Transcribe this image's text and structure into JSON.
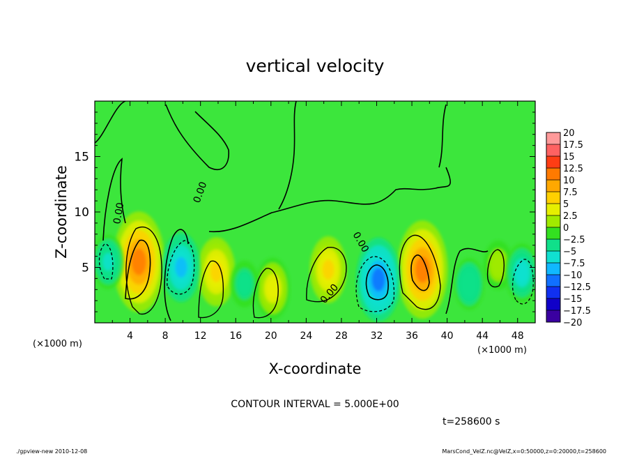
{
  "chart_data": {
    "type": "heatmap",
    "title": "vertical velocity",
    "xlabel": "X-coordinate",
    "ylabel": "Z-coordinate",
    "x_unit": "(×1000 m)",
    "y_unit": "(×1000 m)",
    "xlim": [
      0,
      50
    ],
    "ylim": [
      0,
      20
    ],
    "x_ticks": [
      "4",
      "8",
      "12",
      "16",
      "20",
      "24",
      "28",
      "32",
      "36",
      "40",
      "44",
      "48"
    ],
    "y_ticks": [
      "5",
      "10",
      "15"
    ],
    "colorbar": {
      "min": -20,
      "max": 20,
      "labels": [
        "20",
        "17.5",
        "15",
        "12.5",
        "10",
        "7.5",
        "5",
        "2.5",
        "0",
        "−2.5",
        "−5",
        "−7.5",
        "−10",
        "−12.5",
        "−15",
        "−17.5",
        "−20"
      ],
      "colors": [
        "#ff9a9a",
        "#ff6262",
        "#ff3d14",
        "#ff7a00",
        "#ffa800",
        "#ffd000",
        "#e6ef00",
        "#a0ea00",
        "#33e020",
        "#10e08a",
        "#10e0d0",
        "#10b8ff",
        "#1070ff",
        "#1030f0",
        "#1000c8",
        "#3a00a0",
        "#7000b8"
      ]
    },
    "contour_interval": "CONTOUR INTERVAL = 5.000E+00",
    "contour_labels": [
      "0.00",
      "0.00",
      "0.00",
      "0.00"
    ],
    "time_label": "t=258600 s",
    "features": [
      {
        "x": 5.0,
        "z": 5.5,
        "w": 13.5
      },
      {
        "x": 37.2,
        "z": 4.8,
        "w": 13.0
      },
      {
        "x": 13.8,
        "z": 4.6,
        "w": 7.0
      },
      {
        "x": 20.2,
        "z": 3.1,
        "w": 5.5
      },
      {
        "x": 26.5,
        "z": 4.8,
        "w": 6.5
      },
      {
        "x": 45.8,
        "z": 5.2,
        "w": 3.0
      },
      {
        "x": 32.2,
        "z": 3.9,
        "w": -10.0
      },
      {
        "x": 9.8,
        "z": 5.0,
        "w": -7.0
      },
      {
        "x": 1.5,
        "z": 5.5,
        "w": -4.0
      },
      {
        "x": 48.5,
        "z": 4.5,
        "w": -5.0
      },
      {
        "x": 42.5,
        "z": 3.5,
        "w": -3.5
      },
      {
        "x": 17.0,
        "z": 3.5,
        "w": -2.5
      }
    ]
  },
  "footer": {
    "left": "./gpview-new  2010-12-08",
    "right": "MarsCond_VelZ.nc@VelZ,x=0:50000,z=0:20000,t=258600"
  }
}
